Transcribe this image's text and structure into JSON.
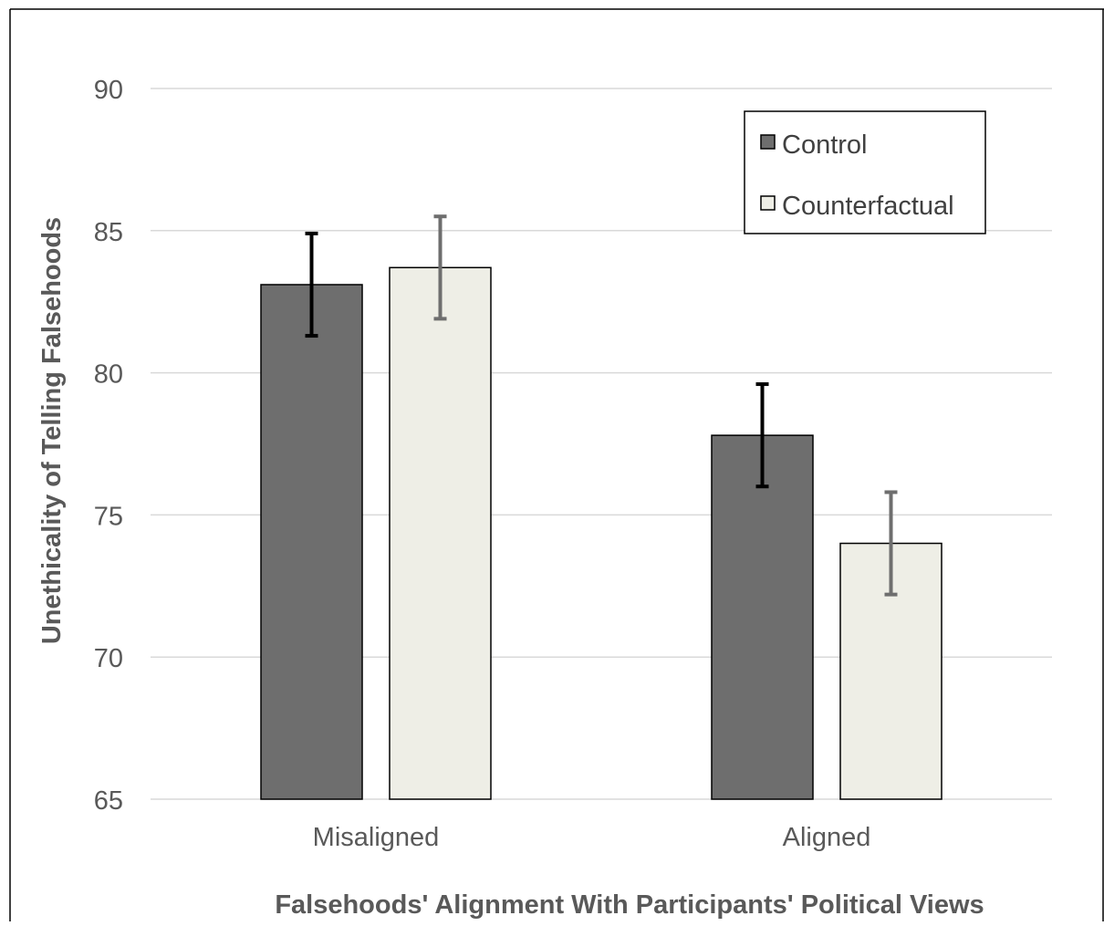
{
  "chart_data": {
    "type": "bar",
    "title": "",
    "xlabel": "Falsehoods' Alignment With Participants' Political Views",
    "ylabel": "Unethicality of Telling Falsehoods",
    "categories": [
      "Misaligned",
      "Aligned"
    ],
    "ylim": [
      65,
      90
    ],
    "yticks": [
      65,
      70,
      75,
      80,
      85,
      90
    ],
    "grid": true,
    "legend_position": "top-right",
    "series": [
      {
        "name": "Control",
        "values": [
          83.1,
          77.8
        ],
        "error_low": [
          81.3,
          76.0
        ],
        "error_high": [
          84.9,
          79.6
        ],
        "color": "#6e6e6e",
        "error_color": "#000000"
      },
      {
        "name": "Counterfactual",
        "values": [
          83.7,
          74.0
        ],
        "error_low": [
          81.9,
          72.2
        ],
        "error_high": [
          85.5,
          75.8
        ],
        "color": "#eeeee6",
        "error_color": "#6e6e6e"
      }
    ]
  }
}
